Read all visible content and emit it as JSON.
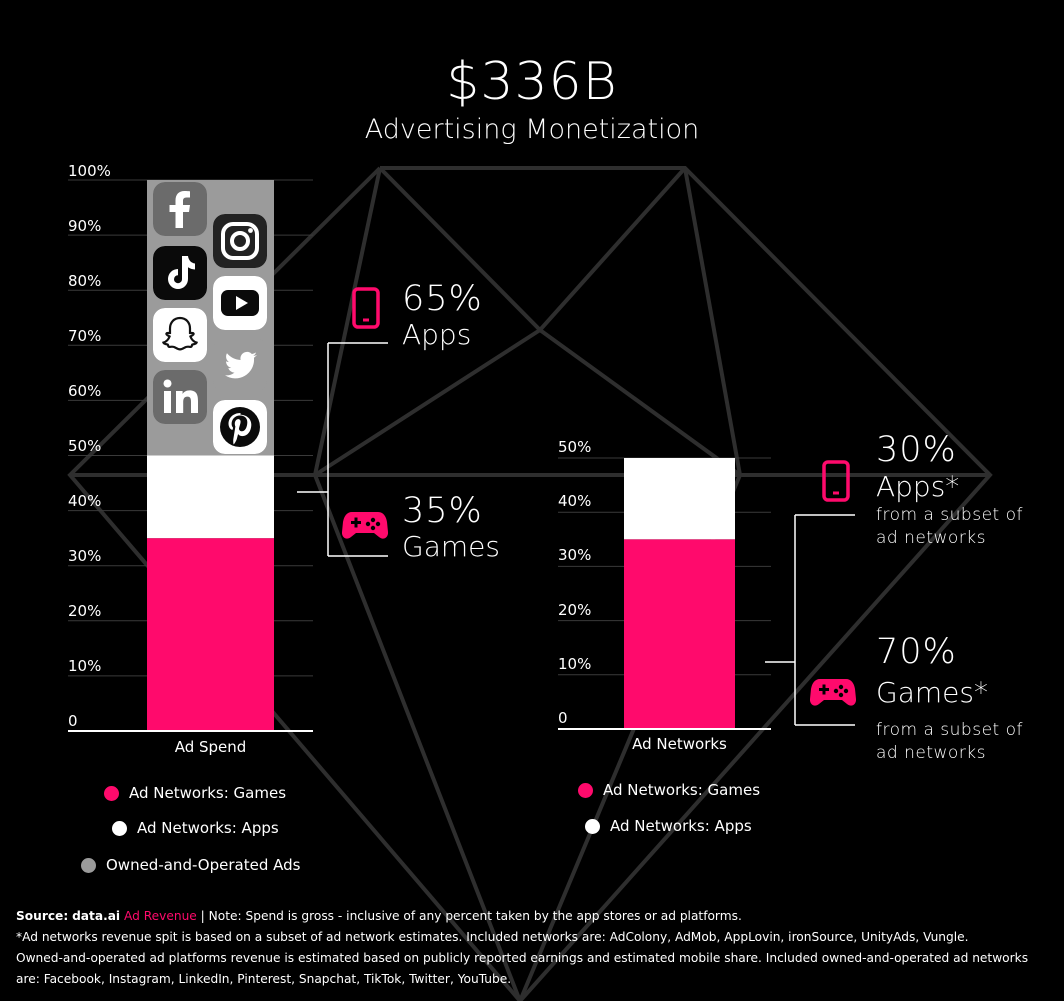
{
  "header": {
    "title": "$336B",
    "subtitle": "Advertising Monetization"
  },
  "colors": {
    "games": "#ff0a6c",
    "apps": "#ffffff",
    "owned": "#9b9b9b",
    "background": "#000000"
  },
  "chart_data": [
    {
      "type": "bar",
      "stacked": true,
      "categories": [
        "Ad Spend"
      ],
      "ylim": [
        0,
        100
      ],
      "yticks": [
        "0",
        "10%",
        "20%",
        "30%",
        "40%",
        "50%",
        "60%",
        "70%",
        "80%",
        "90%",
        "100%"
      ],
      "series": [
        {
          "name": "Ad Networks: Games",
          "values": [
            35
          ]
        },
        {
          "name": "Ad Networks: Apps",
          "values": [
            15
          ]
        },
        {
          "name": "Owned-and-Operated Ads",
          "values": [
            50
          ]
        }
      ],
      "legend": [
        "Ad Networks: Games",
        "Ad Networks: Apps",
        "Owned-and-Operated Ads"
      ],
      "owned_logos": [
        "facebook-icon",
        "instagram-icon",
        "tiktok-icon",
        "youtube-icon",
        "snapchat-icon",
        "twitter-icon",
        "linkedin-icon",
        "pinterest-icon"
      ],
      "annotations": [
        {
          "value": "65%",
          "label": "Apps",
          "icon": "smartphone-icon"
        },
        {
          "value": "35%",
          "label": "Games",
          "icon": "gamepad-icon"
        }
      ]
    },
    {
      "type": "bar",
      "stacked": true,
      "categories": [
        "Ad Networks"
      ],
      "ylim": [
        0,
        50
      ],
      "yticks": [
        "0",
        "10%",
        "20%",
        "30%",
        "40%",
        "50%"
      ],
      "series": [
        {
          "name": "Ad Networks: Games",
          "values": [
            35
          ]
        },
        {
          "name": "Ad Networks: Apps",
          "values": [
            15
          ]
        }
      ],
      "legend": [
        "Ad Networks: Games",
        "Ad Networks: Apps"
      ],
      "annotations": [
        {
          "value": "30%",
          "label": "Apps*",
          "sub": [
            "from a subset of",
            "ad networks"
          ],
          "icon": "smartphone-icon"
        },
        {
          "value": "70%",
          "label": "Games*",
          "sub": [
            "from a subset of",
            "ad networks"
          ],
          "icon": "gamepad-icon"
        }
      ]
    }
  ],
  "footer": {
    "source_label": "Source:",
    "source_name": "data.ai",
    "source_link": "Ad Revenue",
    "note": " | Note: Spend is gross - inclusive of any percent taken by the app stores or ad platforms.",
    "line2": "*Ad networks revenue spit is based on a subset of ad network estimates. Included networks are: AdColony, AdMob, AppLovin, ironSource, UnityAds, Vungle.",
    "line3": "Owned-and-operated ad platforms revenue is estimated based on publicly reported earnings and estimated mobile share. Included owned-and-operated ad networks",
    "line4": "are: Facebook, Instagram,  LinkedIn, Pinterest, Snapchat, TikTok, Twitter, YouTube."
  }
}
